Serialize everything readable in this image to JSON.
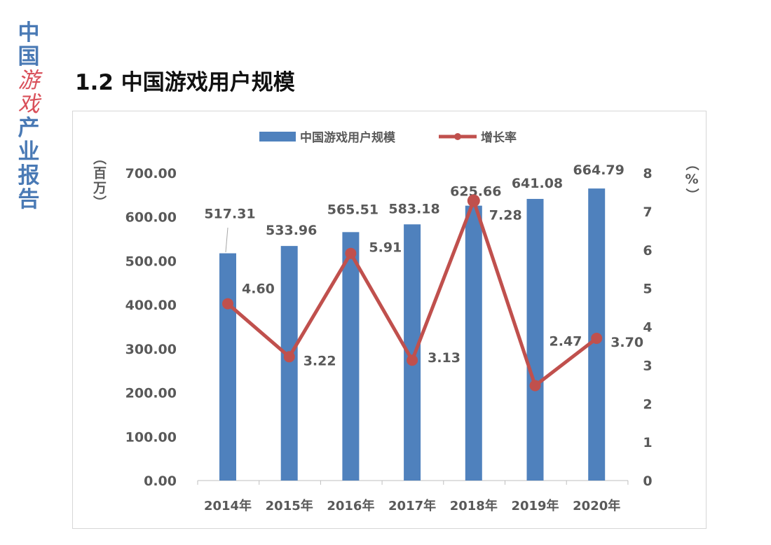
{
  "side_title": [
    "中",
    "国",
    "游",
    "戏",
    "产",
    "业",
    "报",
    "告"
  ],
  "page_title": "1.2 中国游戏用户规模",
  "chart_data": {
    "type": "bar+line",
    "categories": [
      "2014年",
      "2015年",
      "2016年",
      "2017年",
      "2018年",
      "2019年",
      "2020年"
    ],
    "series": [
      {
        "name": "中国游戏用户规模",
        "type": "bar",
        "axis": "left",
        "color": "#4f81bd",
        "values": [
          517.31,
          533.96,
          565.51,
          583.18,
          625.66,
          641.08,
          664.79
        ],
        "labels": [
          "517.31",
          "533.96",
          "565.51",
          "583.18",
          "625.66",
          "641.08",
          "664.79"
        ]
      },
      {
        "name": "增长率",
        "type": "line",
        "axis": "right",
        "color": "#c0504d",
        "values": [
          4.6,
          3.22,
          5.91,
          3.13,
          7.28,
          2.47,
          3.7
        ],
        "labels": [
          "4.60",
          "3.22",
          "5.91",
          "3.13",
          "7.28",
          "2.47",
          "3.70"
        ]
      }
    ],
    "left_axis": {
      "label": "（百万）",
      "ylim": [
        0,
        700
      ],
      "ticks": [
        "0.00",
        "100.00",
        "200.00",
        "300.00",
        "400.00",
        "500.00",
        "600.00",
        "700.00"
      ]
    },
    "right_axis": {
      "label": "（%）",
      "ylim": [
        0,
        8
      ],
      "ticks": [
        "0",
        "1",
        "2",
        "3",
        "4",
        "5",
        "6",
        "7",
        "8"
      ]
    },
    "legend_position": "top",
    "grid": false
  }
}
